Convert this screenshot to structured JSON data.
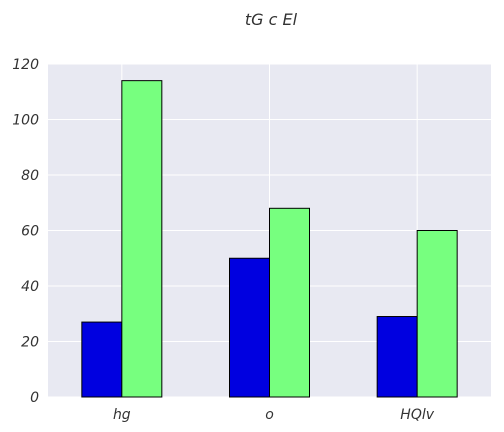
{
  "chart_data": {
    "type": "bar",
    "title": "tG c El",
    "xlabel": "",
    "ylabel": "",
    "categories": [
      "hg",
      "o",
      "HQlv"
    ],
    "series": [
      {
        "values": [
          27,
          50,
          29
        ],
        "color": "#0000e0"
      },
      {
        "values": [
          114,
          68,
          60
        ],
        "color": "#77ff7f"
      }
    ],
    "ylim": [
      0,
      120
    ],
    "yticks": [
      0,
      20,
      40,
      60,
      80,
      100,
      120
    ],
    "grid": true,
    "background": "#e8e9f2",
    "legend": "none"
  }
}
